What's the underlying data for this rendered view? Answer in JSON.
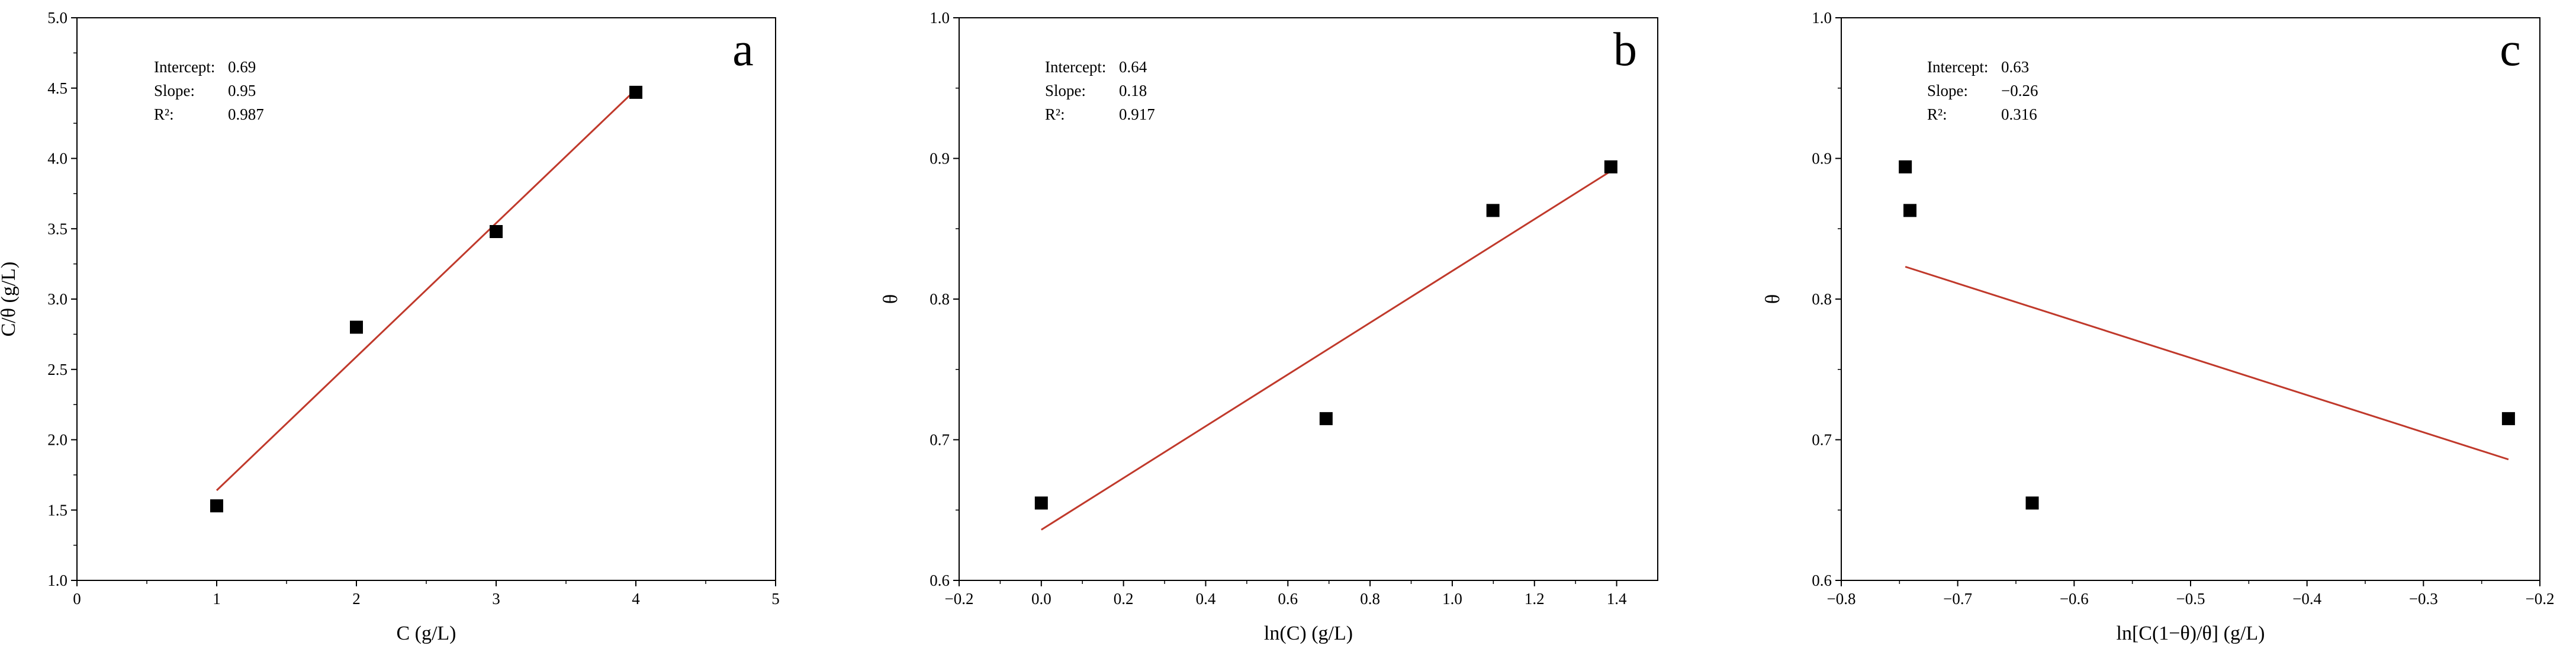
{
  "chart_data": [
    {
      "type": "scatter",
      "panel_letter": "a",
      "xlabel": "C (g/L)",
      "ylabel": "C/θ (g/L)",
      "xlim": [
        0,
        5
      ],
      "ylim": [
        1.0,
        5.0
      ],
      "x_ticks": [
        0,
        1,
        2,
        3,
        4,
        5
      ],
      "x_tick_labels": [
        "0",
        "1",
        "2",
        "3",
        "4",
        "5"
      ],
      "y_ticks": [
        1.0,
        1.5,
        2.0,
        2.5,
        3.0,
        3.5,
        4.0,
        4.5,
        5.0
      ],
      "y_tick_labels": [
        "1.0",
        "1.5",
        "2.0",
        "2.5",
        "3.0",
        "3.5",
        "4.0",
        "4.5",
        "5.0"
      ],
      "points": [
        {
          "x": 1,
          "y": 1.53
        },
        {
          "x": 2,
          "y": 2.8
        },
        {
          "x": 3,
          "y": 3.48
        },
        {
          "x": 4,
          "y": 4.47
        }
      ],
      "fit_line": {
        "x0": 1,
        "y0": 1.64,
        "x1": 4,
        "y1": 4.49
      },
      "stats": [
        {
          "label": "Intercept:",
          "value": "0.69"
        },
        {
          "label": "Slope:",
          "value": "0.95"
        },
        {
          "label": "R²:",
          "value": "0.987"
        }
      ],
      "point_color": "#000000",
      "line_color": "#c0392b",
      "grid": false
    },
    {
      "type": "scatter",
      "panel_letter": "b",
      "xlabel": "ln(C) (g/L)",
      "ylabel": "θ",
      "xlim": [
        -0.2,
        1.5
      ],
      "ylim": [
        0.6,
        1.0
      ],
      "x_ticks": [
        -0.2,
        0.0,
        0.2,
        0.4,
        0.6,
        0.8,
        1.0,
        1.2,
        1.4
      ],
      "x_tick_labels": [
        "−0.2",
        "0.0",
        "0.2",
        "0.4",
        "0.6",
        "0.8",
        "1.0",
        "1.2",
        "1.4"
      ],
      "y_ticks": [
        0.6,
        0.7,
        0.8,
        0.9,
        1.0
      ],
      "y_tick_labels": [
        "0.6",
        "0.7",
        "0.8",
        "0.9",
        "1.0"
      ],
      "points": [
        {
          "x": 0.0,
          "y": 0.655
        },
        {
          "x": 0.693,
          "y": 0.715
        },
        {
          "x": 1.099,
          "y": 0.863
        },
        {
          "x": 1.386,
          "y": 0.894
        }
      ],
      "fit_line": {
        "x0": 0.0,
        "y0": 0.636,
        "x1": 1.386,
        "y1": 0.891
      },
      "stats": [
        {
          "label": "Intercept:",
          "value": "0.64"
        },
        {
          "label": "Slope:",
          "value": "0.18"
        },
        {
          "label": "R²:",
          "value": "0.917"
        }
      ],
      "point_color": "#000000",
      "line_color": "#c0392b",
      "grid": false
    },
    {
      "type": "scatter",
      "panel_letter": "c",
      "xlabel": "ln[C(1−θ)/θ] (g/L)",
      "ylabel": "θ",
      "xlim": [
        -0.8,
        -0.2
      ],
      "ylim": [
        0.6,
        1.0
      ],
      "x_ticks": [
        -0.8,
        -0.7,
        -0.6,
        -0.5,
        -0.4,
        -0.3,
        -0.2
      ],
      "x_tick_labels": [
        "−0.8",
        "−0.7",
        "−0.6",
        "−0.5",
        "−0.4",
        "−0.3",
        "−0.2"
      ],
      "y_ticks": [
        0.6,
        0.7,
        0.8,
        0.9,
        1.0
      ],
      "y_tick_labels": [
        "0.6",
        "0.7",
        "0.8",
        "0.9",
        "1.0"
      ],
      "points": [
        {
          "x": -0.745,
          "y": 0.894
        },
        {
          "x": -0.741,
          "y": 0.863
        },
        {
          "x": -0.636,
          "y": 0.655
        },
        {
          "x": -0.227,
          "y": 0.715
        }
      ],
      "fit_line": {
        "x0": -0.745,
        "y0": 0.823,
        "x1": -0.227,
        "y1": 0.686
      },
      "stats": [
        {
          "label": "Intercept:",
          "value": "0.63"
        },
        {
          "label": "Slope:",
          "value": "−0.26"
        },
        {
          "label": "R²:",
          "value": "0.316"
        }
      ],
      "point_color": "#000000",
      "line_color": "#c0392b",
      "grid": false
    }
  ]
}
